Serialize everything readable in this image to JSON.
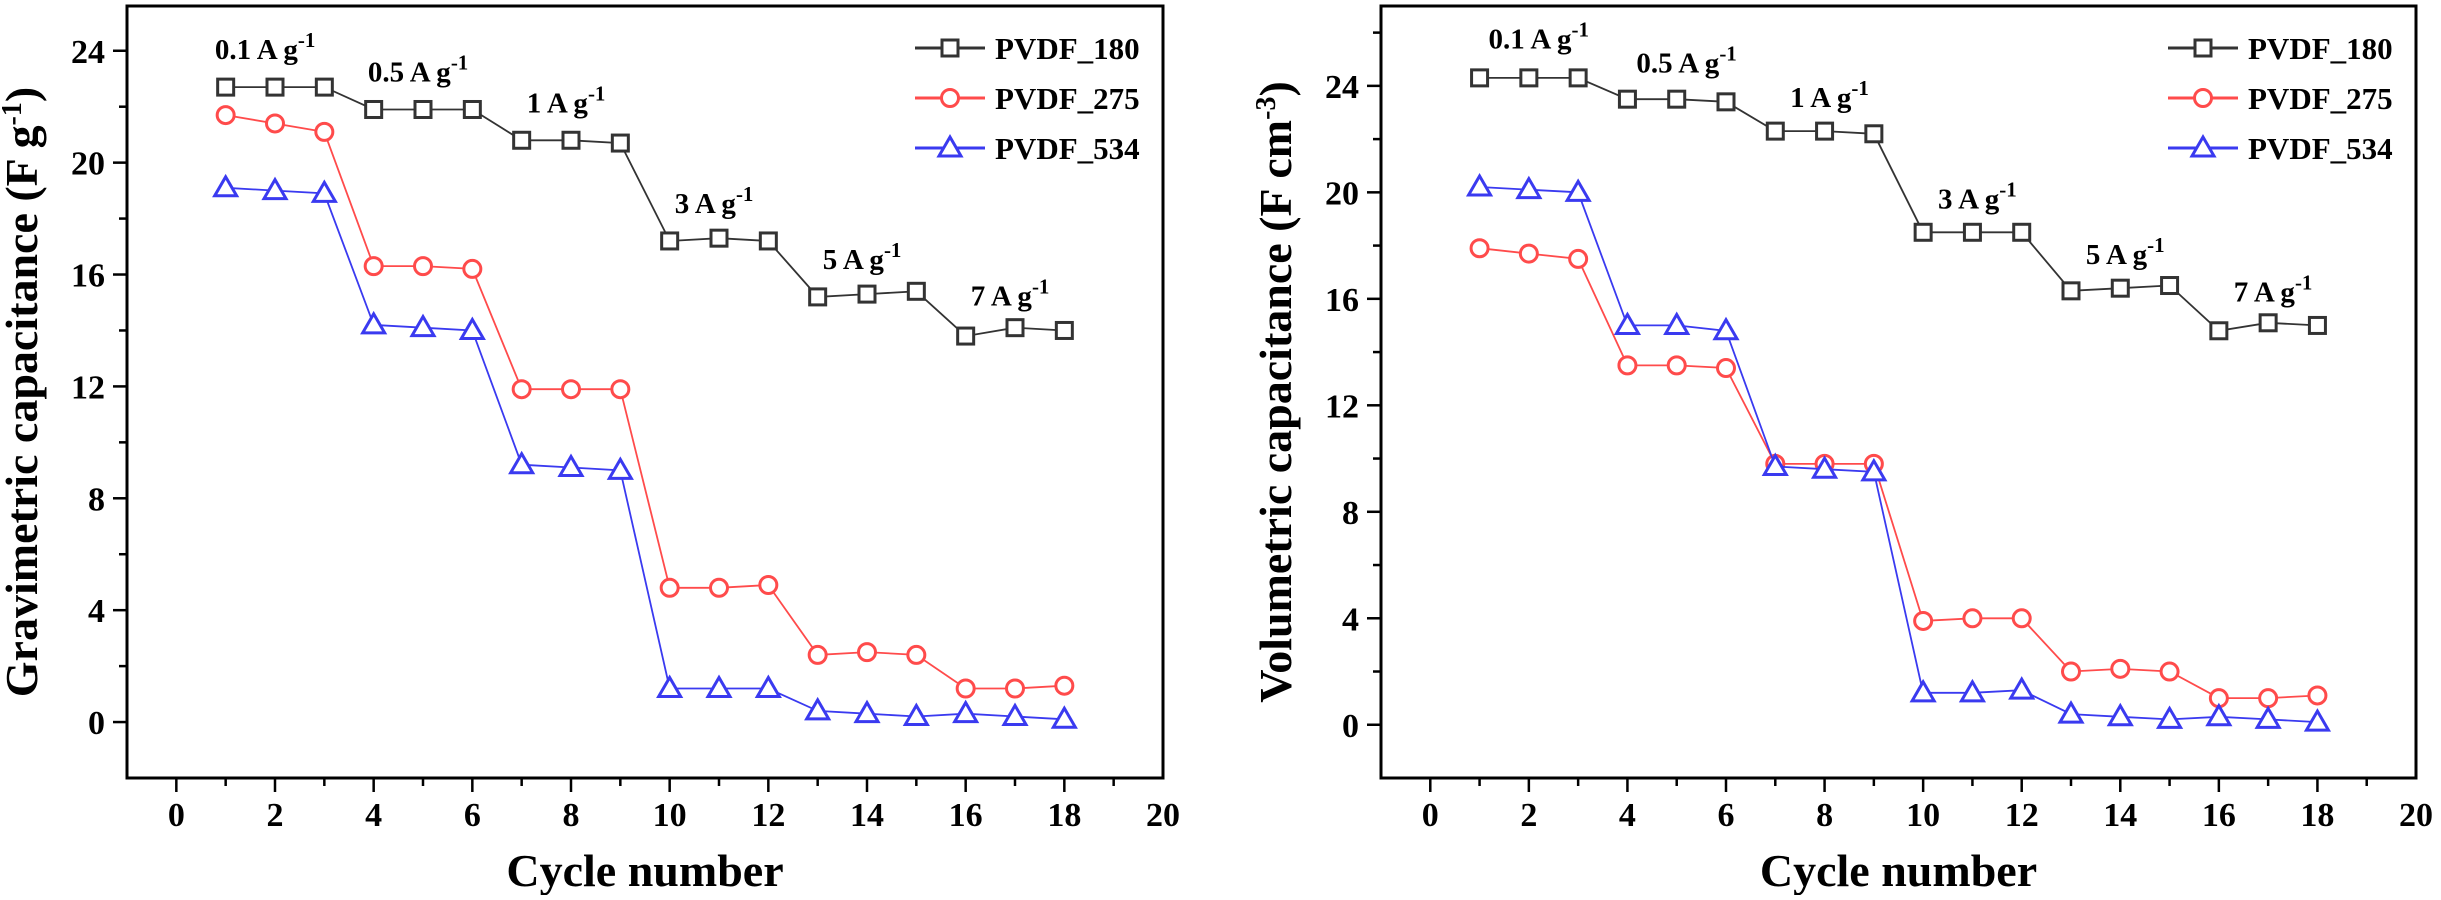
{
  "colors": {
    "PVDF_180": "#333333",
    "PVDF_275": "#ff4b4b",
    "PVDF_534": "#3a3af0"
  },
  "chart_data": [
    {
      "type": "line",
      "xlabel": "Cycle number",
      "ylabel": "Gravimetric capacitance (F g",
      "ylabel_sup": "-1",
      "ylabel_end": ")",
      "xlim": [
        -1,
        20
      ],
      "ylim": [
        -2,
        25.6
      ],
      "xticks": [
        0,
        2,
        4,
        6,
        8,
        10,
        12,
        14,
        16,
        18,
        20
      ],
      "yticks": [
        0,
        4,
        8,
        12,
        16,
        20,
        24
      ],
      "legend_position": "top-right",
      "x": [
        1,
        2,
        3,
        4,
        5,
        6,
        7,
        8,
        9,
        10,
        11,
        12,
        13,
        14,
        15,
        16,
        17,
        18
      ],
      "series": [
        {
          "name": "PVDF_180",
          "marker": "square",
          "values": [
            22.7,
            22.7,
            22.7,
            21.9,
            21.9,
            21.9,
            20.8,
            20.8,
            20.7,
            17.2,
            17.3,
            17.2,
            15.2,
            15.3,
            15.4,
            13.8,
            14.1,
            14.0
          ]
        },
        {
          "name": "PVDF_275",
          "marker": "circle",
          "values": [
            21.7,
            21.4,
            21.1,
            16.3,
            16.3,
            16.2,
            11.9,
            11.9,
            11.9,
            4.8,
            4.8,
            4.9,
            2.4,
            2.5,
            2.4,
            1.2,
            1.2,
            1.3
          ]
        },
        {
          "name": "PVDF_534",
          "marker": "triangle",
          "values": [
            19.1,
            19.0,
            18.9,
            14.2,
            14.1,
            14.0,
            9.2,
            9.1,
            9.0,
            1.2,
            1.2,
            1.2,
            0.4,
            0.3,
            0.2,
            0.3,
            0.2,
            0.1
          ]
        }
      ],
      "annotations": [
        {
          "text": "0.1 A g",
          "sup": "-1",
          "x": 1.8,
          "y": 23.7
        },
        {
          "text": "0.5 A g",
          "sup": "-1",
          "x": 4.9,
          "y": 22.9
        },
        {
          "text": "1 A g",
          "sup": "-1",
          "x": 7.9,
          "y": 21.8
        },
        {
          "text": "3 A g",
          "sup": "-1",
          "x": 10.9,
          "y": 18.2
        },
        {
          "text": "5 A g",
          "sup": "-1",
          "x": 13.9,
          "y": 16.2
        },
        {
          "text": "7 A g",
          "sup": "-1",
          "x": 16.9,
          "y": 14.9
        }
      ]
    },
    {
      "type": "line",
      "xlabel": "Cycle number",
      "ylabel": "Volumetric capacitance (F cm",
      "ylabel_sup": "-3",
      "ylabel_end": ")",
      "xlim": [
        -1,
        20
      ],
      "ylim": [
        -2,
        27
      ],
      "xticks": [
        0,
        2,
        4,
        6,
        8,
        10,
        12,
        14,
        16,
        18,
        20
      ],
      "yticks": [
        0,
        4,
        8,
        12,
        16,
        20,
        24
      ],
      "legend_position": "top-right",
      "x": [
        1,
        2,
        3,
        4,
        5,
        6,
        7,
        8,
        9,
        10,
        11,
        12,
        13,
        14,
        15,
        16,
        17,
        18
      ],
      "series": [
        {
          "name": "PVDF_180",
          "marker": "square",
          "values": [
            24.3,
            24.3,
            24.3,
            23.5,
            23.5,
            23.4,
            22.3,
            22.3,
            22.2,
            18.5,
            18.5,
            18.5,
            16.3,
            16.4,
            16.5,
            14.8,
            15.1,
            15.0
          ]
        },
        {
          "name": "PVDF_275",
          "marker": "circle",
          "values": [
            17.9,
            17.7,
            17.5,
            13.5,
            13.5,
            13.4,
            9.8,
            9.8,
            9.8,
            3.9,
            4.0,
            4.0,
            2.0,
            2.1,
            2.0,
            1.0,
            1.0,
            1.1
          ]
        },
        {
          "name": "PVDF_534",
          "marker": "triangle",
          "values": [
            20.2,
            20.1,
            20.0,
            15.0,
            15.0,
            14.8,
            9.7,
            9.6,
            9.5,
            1.2,
            1.2,
            1.3,
            0.4,
            0.3,
            0.2,
            0.3,
            0.2,
            0.1
          ]
        }
      ],
      "annotations": [
        {
          "text": "0.1 A g",
          "sup": "-1",
          "x": 2.2,
          "y": 25.4
        },
        {
          "text": "0.5 A g",
          "sup": "-1",
          "x": 5.2,
          "y": 24.5
        },
        {
          "text": "1 A g",
          "sup": "-1",
          "x": 8.1,
          "y": 23.2
        },
        {
          "text": "3 A g",
          "sup": "-1",
          "x": 11.1,
          "y": 19.4
        },
        {
          "text": "5 A g",
          "sup": "-1",
          "x": 14.1,
          "y": 17.3
        },
        {
          "text": "7 A g",
          "sup": "-1",
          "x": 17.1,
          "y": 15.9
        }
      ]
    }
  ]
}
